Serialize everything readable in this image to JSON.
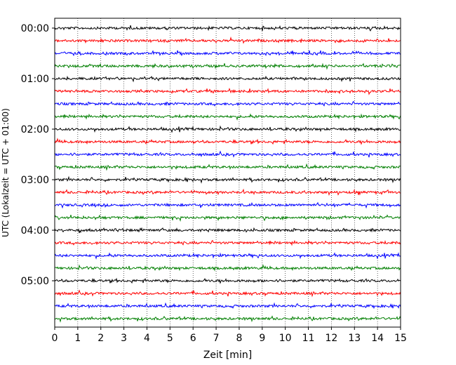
{
  "chart_data": {
    "type": "line",
    "title": "",
    "xlabel": "Zeit  [min]",
    "ylabel": "UTC (Lokalzeit = UTC + 01:00)",
    "xlim": [
      0,
      15
    ],
    "x_ticks": [
      "0",
      "1",
      "2",
      "3",
      "4",
      "5",
      "6",
      "7",
      "8",
      "9",
      "10",
      "11",
      "12",
      "13",
      "14",
      "15"
    ],
    "y_tick_labels": [
      "00:00",
      "01:00",
      "02:00",
      "03:00",
      "04:00",
      "05:00"
    ],
    "trace_interval_min": 15,
    "traces_per_hour": 4,
    "trace_count": 24,
    "trace_colors": [
      "#000000",
      "#ff0000",
      "#0000ff",
      "#007f00"
    ],
    "grid": "vertical dotted at each minute",
    "series": [
      {
        "start": "00:00",
        "color": "#000000"
      },
      {
        "start": "00:15",
        "color": "#ff0000"
      },
      {
        "start": "00:30",
        "color": "#0000ff"
      },
      {
        "start": "00:45",
        "color": "#007f00"
      },
      {
        "start": "01:00",
        "color": "#000000"
      },
      {
        "start": "01:15",
        "color": "#ff0000"
      },
      {
        "start": "01:30",
        "color": "#0000ff"
      },
      {
        "start": "01:45",
        "color": "#007f00"
      },
      {
        "start": "02:00",
        "color": "#000000"
      },
      {
        "start": "02:15",
        "color": "#ff0000"
      },
      {
        "start": "02:30",
        "color": "#0000ff"
      },
      {
        "start": "02:45",
        "color": "#007f00"
      },
      {
        "start": "03:00",
        "color": "#000000"
      },
      {
        "start": "03:15",
        "color": "#ff0000"
      },
      {
        "start": "03:30",
        "color": "#0000ff"
      },
      {
        "start": "03:45",
        "color": "#007f00"
      },
      {
        "start": "04:00",
        "color": "#000000"
      },
      {
        "start": "04:15",
        "color": "#ff0000"
      },
      {
        "start": "04:30",
        "color": "#0000ff"
      },
      {
        "start": "04:45",
        "color": "#007f00"
      },
      {
        "start": "05:00",
        "color": "#000000"
      },
      {
        "start": "05:15",
        "color": "#ff0000"
      },
      {
        "start": "05:30",
        "color": "#0000ff"
      },
      {
        "start": "05:45",
        "color": "#007f00"
      }
    ]
  }
}
